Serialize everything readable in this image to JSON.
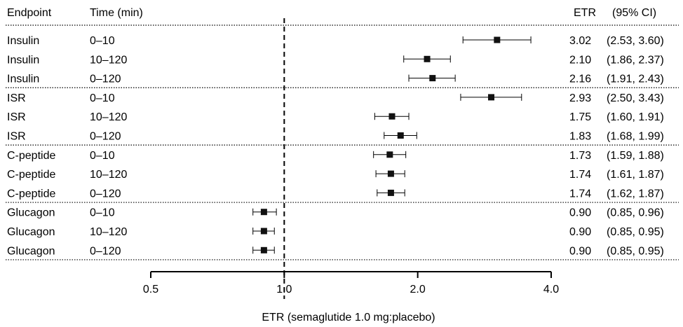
{
  "chart_data": {
    "type": "forest",
    "xlabel": "ETR (semaglutide 1.0 mg:placebo)",
    "xscale": "log2",
    "xlim": [
      0.5,
      4.0
    ],
    "xticks": [
      0.5,
      1.0,
      2.0,
      4.0
    ],
    "xtick_labels": [
      "0.5",
      "1.0",
      "2.0",
      "4.0"
    ],
    "reference_line": 1.0,
    "headers": {
      "endpoint": "Endpoint",
      "time": "Time (min)",
      "etr": "ETR",
      "ci": "(95% CI)"
    },
    "groups": [
      {
        "endpoint": "Insulin",
        "rows": [
          0,
          1,
          2
        ]
      },
      {
        "endpoint": "ISR",
        "rows": [
          3,
          4,
          5
        ]
      },
      {
        "endpoint": "C-peptide",
        "rows": [
          6,
          7,
          8
        ]
      },
      {
        "endpoint": "Glucagon",
        "rows": [
          9,
          10,
          11
        ]
      }
    ],
    "rows": [
      {
        "endpoint": "Insulin",
        "time": "0–10",
        "etr": 3.02,
        "lo": 2.53,
        "hi": 3.6,
        "etr_text": "3.02",
        "ci_text": "(2.53, 3.60)"
      },
      {
        "endpoint": "Insulin",
        "time": "10–120",
        "etr": 2.1,
        "lo": 1.86,
        "hi": 2.37,
        "etr_text": "2.10",
        "ci_text": "(1.86, 2.37)"
      },
      {
        "endpoint": "Insulin",
        "time": "0–120",
        "etr": 2.16,
        "lo": 1.91,
        "hi": 2.43,
        "etr_text": "2.16",
        "ci_text": "(1.91, 2.43)"
      },
      {
        "endpoint": "ISR",
        "time": "0–10",
        "etr": 2.93,
        "lo": 2.5,
        "hi": 3.43,
        "etr_text": "2.93",
        "ci_text": "(2.50, 3.43)"
      },
      {
        "endpoint": "ISR",
        "time": "10–120",
        "etr": 1.75,
        "lo": 1.6,
        "hi": 1.91,
        "etr_text": "1.75",
        "ci_text": "(1.60, 1.91)"
      },
      {
        "endpoint": "ISR",
        "time": "0–120",
        "etr": 1.83,
        "lo": 1.68,
        "hi": 1.99,
        "etr_text": "1.83",
        "ci_text": "(1.68, 1.99)"
      },
      {
        "endpoint": "C-peptide",
        "time": "0–10",
        "etr": 1.73,
        "lo": 1.59,
        "hi": 1.88,
        "etr_text": "1.73",
        "ci_text": "(1.59, 1.88)"
      },
      {
        "endpoint": "C-peptide",
        "time": "10–120",
        "etr": 1.74,
        "lo": 1.61,
        "hi": 1.87,
        "etr_text": "1.74",
        "ci_text": "(1.61, 1.87)"
      },
      {
        "endpoint": "C-peptide",
        "time": "0–120",
        "etr": 1.74,
        "lo": 1.62,
        "hi": 1.87,
        "etr_text": "1.74",
        "ci_text": "(1.62, 1.87)"
      },
      {
        "endpoint": "Glucagon",
        "time": "0–10",
        "etr": 0.9,
        "lo": 0.85,
        "hi": 0.96,
        "etr_text": "0.90",
        "ci_text": "(0.85, 0.96)"
      },
      {
        "endpoint": "Glucagon",
        "time": "10–120",
        "etr": 0.9,
        "lo": 0.85,
        "hi": 0.95,
        "etr_text": "0.90",
        "ci_text": "(0.85, 0.95)"
      },
      {
        "endpoint": "Glucagon",
        "time": "0–120",
        "etr": 0.9,
        "lo": 0.85,
        "hi": 0.95,
        "etr_text": "0.90",
        "ci_text": "(0.85, 0.95)"
      }
    ],
    "colors": {
      "marker": "#111111",
      "line": "#000000"
    },
    "grid": false
  }
}
